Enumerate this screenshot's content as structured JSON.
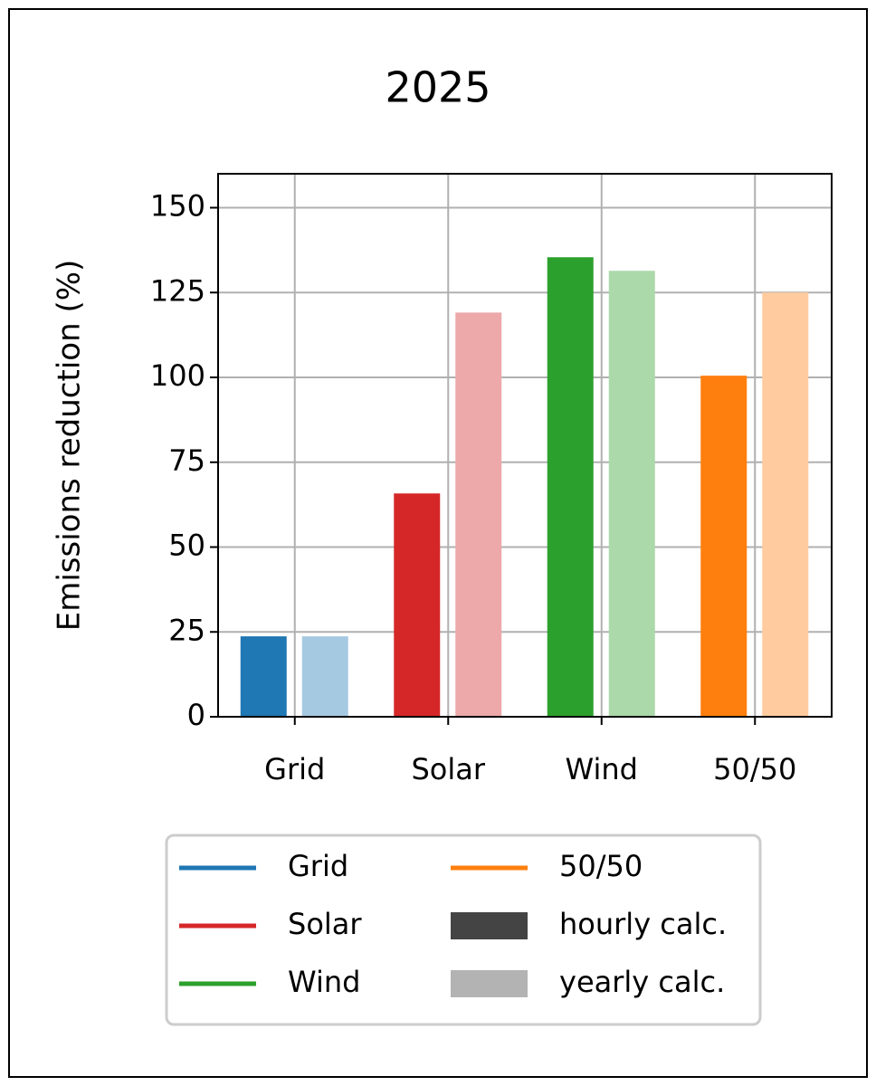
{
  "chart_data": {
    "type": "bar",
    "title": "2025",
    "y_label": "Emissions reduction (%)",
    "categories": [
      "Grid",
      "Solar",
      "Wind",
      "50/50"
    ],
    "category_colors": [
      "#1f77b4",
      "#d62728",
      "#2ca02c",
      "#ff7f0e"
    ],
    "series": [
      {
        "name": "hourly calc.",
        "color": "#444444",
        "bar_colors": [
          "#1f77b4",
          "#d62728",
          "#2ca02c",
          "#ff7f0e"
        ],
        "values": [
          23.7,
          65.8,
          135.4,
          100.5
        ]
      },
      {
        "name": "yearly calc.",
        "color": "#b3b3b3",
        "bar_colors": [
          "#a5c9e1",
          "#eda8aa",
          "#abd9a9",
          "#ffcb9f"
        ],
        "values": [
          23.7,
          119.1,
          131.4,
          125
        ]
      }
    ],
    "ylim": [
      0,
      160
    ],
    "yticks": [
      0,
      25,
      50,
      75,
      100,
      125,
      150
    ],
    "grid": true
  }
}
